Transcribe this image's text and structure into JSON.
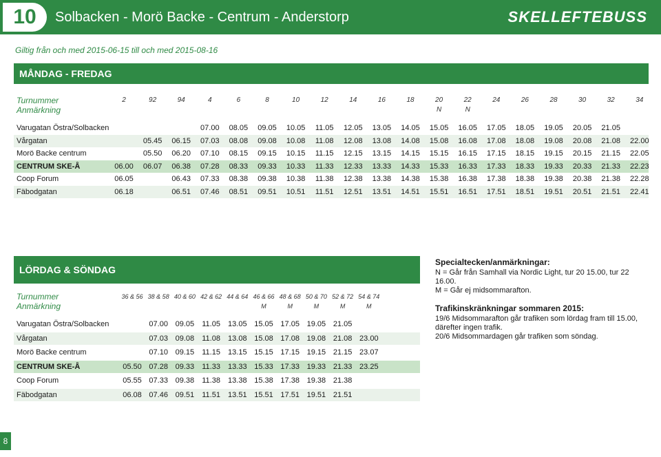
{
  "header": {
    "route_number": "10",
    "route_title": "Solbacken - Morö Backe - Centrum - Anderstorp",
    "brand": "SKELLEFTEBUSS"
  },
  "validity": "Giltig från och med 2015-06-15 till och med 2015-08-16",
  "weekday": {
    "title": "MÅNDAG - FREDAG",
    "label_turnummer": "Turnummer",
    "label_anmarkning": "Anmärkning",
    "trips": [
      {
        "num": "2",
        "note": ""
      },
      {
        "num": "92",
        "note": ""
      },
      {
        "num": "94",
        "note": ""
      },
      {
        "num": "4",
        "note": ""
      },
      {
        "num": "6",
        "note": ""
      },
      {
        "num": "8",
        "note": ""
      },
      {
        "num": "10",
        "note": ""
      },
      {
        "num": "12",
        "note": ""
      },
      {
        "num": "14",
        "note": ""
      },
      {
        "num": "16",
        "note": ""
      },
      {
        "num": "18",
        "note": ""
      },
      {
        "num": "20",
        "note": "N"
      },
      {
        "num": "22",
        "note": "N"
      },
      {
        "num": "24",
        "note": ""
      },
      {
        "num": "26",
        "note": ""
      },
      {
        "num": "28",
        "note": ""
      },
      {
        "num": "30",
        "note": ""
      },
      {
        "num": "32",
        "note": ""
      },
      {
        "num": "34",
        "note": ""
      }
    ],
    "stops": [
      {
        "name": "Varugatan Östra/Solbacken",
        "times": [
          "",
          "",
          "",
          "07.00",
          "08.05",
          "09.05",
          "10.05",
          "11.05",
          "12.05",
          "13.05",
          "14.05",
          "15.05",
          "16.05",
          "17.05",
          "18.05",
          "19.05",
          "20.05",
          "21.05",
          ""
        ]
      },
      {
        "name": "Vårgatan",
        "times": [
          "",
          "05.45",
          "06.15",
          "07.03",
          "08.08",
          "09.08",
          "10.08",
          "11.08",
          "12.08",
          "13.08",
          "14.08",
          "15.08",
          "16.08",
          "17.08",
          "18.08",
          "19.08",
          "20.08",
          "21.08",
          "22.00"
        ]
      },
      {
        "name": "Morö Backe centrum",
        "times": [
          "",
          "05.50",
          "06.20",
          "07.10",
          "08.15",
          "09.15",
          "10.15",
          "11.15",
          "12.15",
          "13.15",
          "14.15",
          "15.15",
          "16.15",
          "17.15",
          "18.15",
          "19.15",
          "20.15",
          "21.15",
          "22.05"
        ]
      },
      {
        "name": "CENTRUM SKE-Å",
        "times": [
          "06.00",
          "06.07",
          "06.38",
          "07.28",
          "08.33",
          "09.33",
          "10.33",
          "11.33",
          "12.33",
          "13.33",
          "14.33",
          "15.33",
          "16.33",
          "17.33",
          "18.33",
          "19.33",
          "20.33",
          "21.33",
          "22.23"
        ]
      },
      {
        "name": "Coop Forum",
        "times": [
          "06.05",
          "",
          "06.43",
          "07.33",
          "08.38",
          "09.38",
          "10.38",
          "11.38",
          "12.38",
          "13.38",
          "14.38",
          "15.38",
          "16.38",
          "17.38",
          "18.38",
          "19.38",
          "20.38",
          "21.38",
          "22.28"
        ]
      },
      {
        "name": "Fäbodgatan",
        "times": [
          "06.18",
          "",
          "06.51",
          "07.46",
          "08.51",
          "09.51",
          "10.51",
          "11.51",
          "12.51",
          "13.51",
          "14.51",
          "15.51",
          "16.51",
          "17.51",
          "18.51",
          "19.51",
          "20.51",
          "21.51",
          "22.41"
        ]
      }
    ]
  },
  "weekend": {
    "title": "LÖRDAG & SÖNDAG",
    "label_turnummer": "Turnummer",
    "label_anmarkning": "Anmärkning",
    "trips": [
      {
        "num": "36 & 56",
        "note": ""
      },
      {
        "num": "38 & 58",
        "note": ""
      },
      {
        "num": "40 & 60",
        "note": ""
      },
      {
        "num": "42 & 62",
        "note": ""
      },
      {
        "num": "44 & 64",
        "note": ""
      },
      {
        "num": "46 & 66",
        "note": "M"
      },
      {
        "num": "48 & 68",
        "note": "M"
      },
      {
        "num": "50 & 70",
        "note": "M"
      },
      {
        "num": "52 & 72",
        "note": "M"
      },
      {
        "num": "54 & 74",
        "note": "M"
      }
    ],
    "stops": [
      {
        "name": "Varugatan Östra/Solbacken",
        "times": [
          "",
          "07.00",
          "09.05",
          "11.05",
          "13.05",
          "15.05",
          "17.05",
          "19.05",
          "21.05",
          ""
        ]
      },
      {
        "name": "Vårgatan",
        "times": [
          "",
          "07.03",
          "09.08",
          "11.08",
          "13.08",
          "15.08",
          "17.08",
          "19.08",
          "21.08",
          "23.00"
        ]
      },
      {
        "name": "Morö Backe centrum",
        "times": [
          "",
          "07.10",
          "09.15",
          "11.15",
          "13.15",
          "15.15",
          "17.15",
          "19.15",
          "21.15",
          "23.07"
        ]
      },
      {
        "name": "CENTRUM SKE-Å",
        "times": [
          "05.50",
          "07.28",
          "09.33",
          "11.33",
          "13.33",
          "15.33",
          "17.33",
          "19.33",
          "21.33",
          "23.25"
        ]
      },
      {
        "name": "Coop Forum",
        "times": [
          "05.55",
          "07.33",
          "09.38",
          "11.38",
          "13.38",
          "15.38",
          "17.38",
          "19.38",
          "21.38",
          ""
        ]
      },
      {
        "name": "Fäbodgatan",
        "times": [
          "06.08",
          "07.46",
          "09.51",
          "11.51",
          "13.51",
          "15.51",
          "17.51",
          "19.51",
          "21.51",
          ""
        ]
      }
    ]
  },
  "notes": {
    "special_heading": "Specialtecken/anmärkningar:",
    "special_lines": [
      "N = Går från Samhall via Nordic Light, tur 20 15.00, tur 22 16.00.",
      "M = Går ej midsommarafton."
    ],
    "traffic_heading": "Trafikinskränkningar sommaren 2015:",
    "traffic_lines": [
      "19/6 Midsommarafton går trafiken som lördag fram till 15.00,",
      "därefter ingen trafik.",
      "20/6 Midsommardagen går trafiken som söndag."
    ]
  },
  "page_number": "8"
}
